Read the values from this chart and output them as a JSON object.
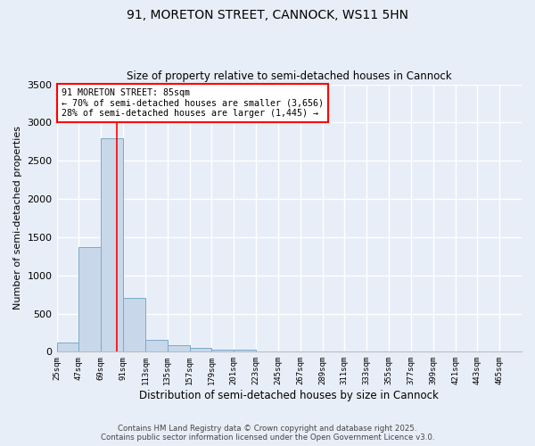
{
  "title_line1": "91, MORETON STREET, CANNOCK, WS11 5HN",
  "title_line2": "Size of property relative to semi-detached houses in Cannock",
  "xlabel": "Distribution of semi-detached houses by size in Cannock",
  "ylabel": "Number of semi-detached properties",
  "bin_labels": [
    "25sqm",
    "47sqm",
    "69sqm",
    "91sqm",
    "113sqm",
    "135sqm",
    "157sqm",
    "179sqm",
    "201sqm",
    "223sqm",
    "245sqm",
    "267sqm",
    "289sqm",
    "311sqm",
    "333sqm",
    "355sqm",
    "377sqm",
    "399sqm",
    "421sqm",
    "443sqm",
    "465sqm"
  ],
  "bin_starts": [
    25,
    47,
    69,
    91,
    113,
    135,
    157,
    179,
    201,
    223,
    245,
    267,
    289,
    311,
    333,
    355,
    377,
    399,
    421,
    443,
    465
  ],
  "bin_width": 22,
  "values": [
    125,
    1375,
    2800,
    700,
    160,
    90,
    50,
    30,
    25,
    0,
    0,
    0,
    0,
    0,
    0,
    0,
    0,
    0,
    0,
    0,
    0
  ],
  "bar_color": "#c8d8ea",
  "bar_edgecolor": "#7aaac8",
  "property_line_x": 85,
  "property_line_color": "red",
  "annotation_text": "91 MORETON STREET: 85sqm\n← 70% of semi-detached houses are smaller (3,656)\n28% of semi-detached houses are larger (1,445) →",
  "annotation_box_color": "white",
  "annotation_box_edgecolor": "red",
  "ylim": [
    0,
    3500
  ],
  "yticks": [
    0,
    500,
    1000,
    1500,
    2000,
    2500,
    3000,
    3500
  ],
  "background_color": "#e8eef8",
  "grid_color": "white",
  "footer_line1": "Contains HM Land Registry data © Crown copyright and database right 2025.",
  "footer_line2": "Contains public sector information licensed under the Open Government Licence v3.0."
}
